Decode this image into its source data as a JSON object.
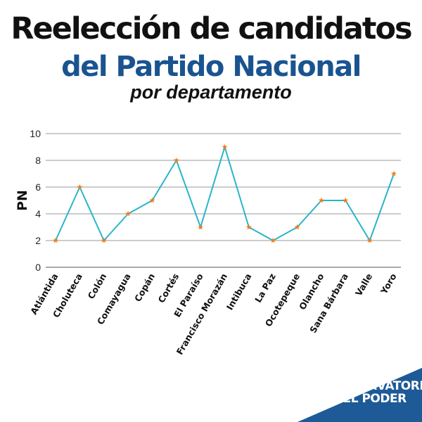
{
  "title_line1": "Reelección de candidatos",
  "title_line2": "del Partido Nacional",
  "title_line3": "por departamento",
  "brand": {
    "line1": "OBSERVATORIO",
    "line2": "DEL PODER"
  },
  "colors": {
    "line": "#29b5c9",
    "marker": "#f07d1a",
    "title_blue": "#1a5490",
    "corner_blue": "#1d5a97"
  },
  "chart_data": {
    "type": "line",
    "ylabel": "PN",
    "ylim": [
      0,
      10
    ],
    "yticks": [
      0,
      2,
      4,
      6,
      8,
      10
    ],
    "grid": true,
    "categories": [
      "Atlántida",
      "Choluteca",
      "Colón",
      "Comayagua",
      "Copán",
      "Cortés",
      "El Paraíso",
      "Francisco Morazán",
      "Intibuca",
      "La Paz",
      "Ocotepeque",
      "Olancho",
      "Sana Bárbara",
      "Valle",
      "Yoro"
    ],
    "series": [
      {
        "values": [
          2,
          6,
          2,
          4,
          5,
          8,
          3,
          9,
          3,
          2,
          3,
          5,
          5,
          2,
          7
        ]
      }
    ]
  }
}
